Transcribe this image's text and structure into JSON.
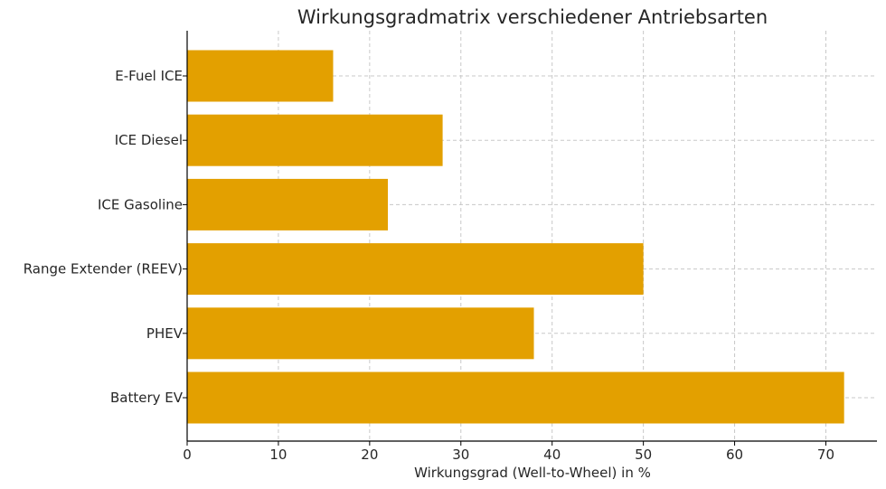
{
  "chart_data": {
    "type": "bar",
    "orientation": "horizontal",
    "title": "Wirkungsgradmatrix verschiedener Antriebsarten",
    "xlabel": "Wirkungsgrad (Well-to-Wheel) in %",
    "ylabel": "",
    "categories": [
      "E-Fuel ICE",
      "ICE Diesel",
      "ICE Gasoline",
      "Range Extender (REEV)",
      "PHEV",
      "Battery EV"
    ],
    "values": [
      16,
      28,
      22,
      50,
      38,
      72
    ],
    "xlim": [
      0,
      75.6
    ],
    "xticks": [
      0,
      10,
      20,
      30,
      40,
      50,
      60,
      70
    ],
    "grid": true,
    "bar_color": "#E3A000"
  }
}
